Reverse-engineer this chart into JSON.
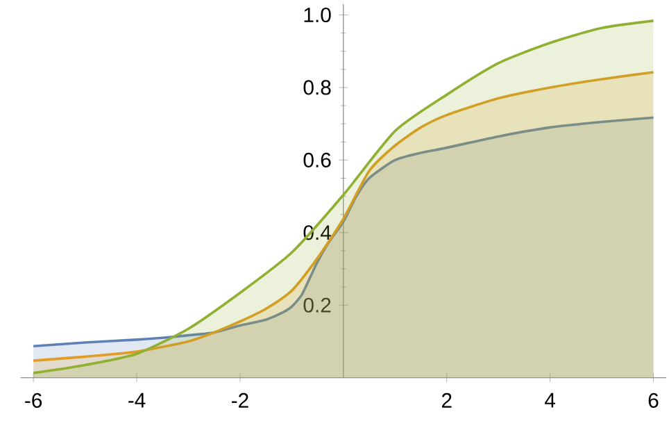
{
  "chart_data": {
    "type": "area",
    "xlim": [
      -6.25,
      6.25
    ],
    "ylim": [
      0,
      1.03
    ],
    "xticks": [
      -6,
      -4,
      -2,
      2,
      4,
      6
    ],
    "yticks": [
      0.2,
      0.4,
      0.6,
      0.8,
      {
        "value": 1.0,
        "label": "1.0"
      }
    ],
    "grid": false,
    "series": [
      {
        "color": "#5e81b5",
        "x": [
          -6,
          -5,
          -4,
          -3.5,
          -3,
          -2.5,
          -2,
          -1.5,
          -1.2,
          -1,
          -0.8,
          -0.6,
          -0.5,
          -0.3,
          -0.2,
          0,
          0.25,
          0.5,
          1,
          1.5,
          2,
          3,
          4,
          5,
          6
        ],
        "values": [
          0.087,
          0.097,
          0.105,
          0.11,
          0.117,
          0.125,
          0.144,
          0.16,
          0.178,
          0.196,
          0.23,
          0.29,
          0.32,
          0.37,
          0.39,
          0.43,
          0.5,
          0.55,
          0.6,
          0.62,
          0.634,
          0.665,
          0.69,
          0.705,
          0.717
        ]
      },
      {
        "color": "#e19c24",
        "x": [
          -6,
          -5,
          -4,
          -3,
          -2.5,
          -2,
          -1.5,
          -1,
          -0.5,
          0,
          0.5,
          1,
          1.5,
          2,
          3,
          4,
          5,
          6
        ],
        "values": [
          0.047,
          0.058,
          0.072,
          0.1,
          0.125,
          0.155,
          0.19,
          0.24,
          0.33,
          0.438,
          0.57,
          0.64,
          0.69,
          0.724,
          0.77,
          0.8,
          0.823,
          0.842
        ]
      },
      {
        "color": "#8fb032",
        "x": [
          -6,
          -5,
          -4,
          -3,
          -2,
          -1,
          0,
          1,
          2,
          3,
          4,
          5,
          6
        ],
        "values": [
          0.013,
          0.035,
          0.066,
          0.135,
          0.234,
          0.345,
          0.504,
          0.68,
          0.78,
          0.867,
          0.923,
          0.964,
          0.984
        ]
      }
    ]
  }
}
